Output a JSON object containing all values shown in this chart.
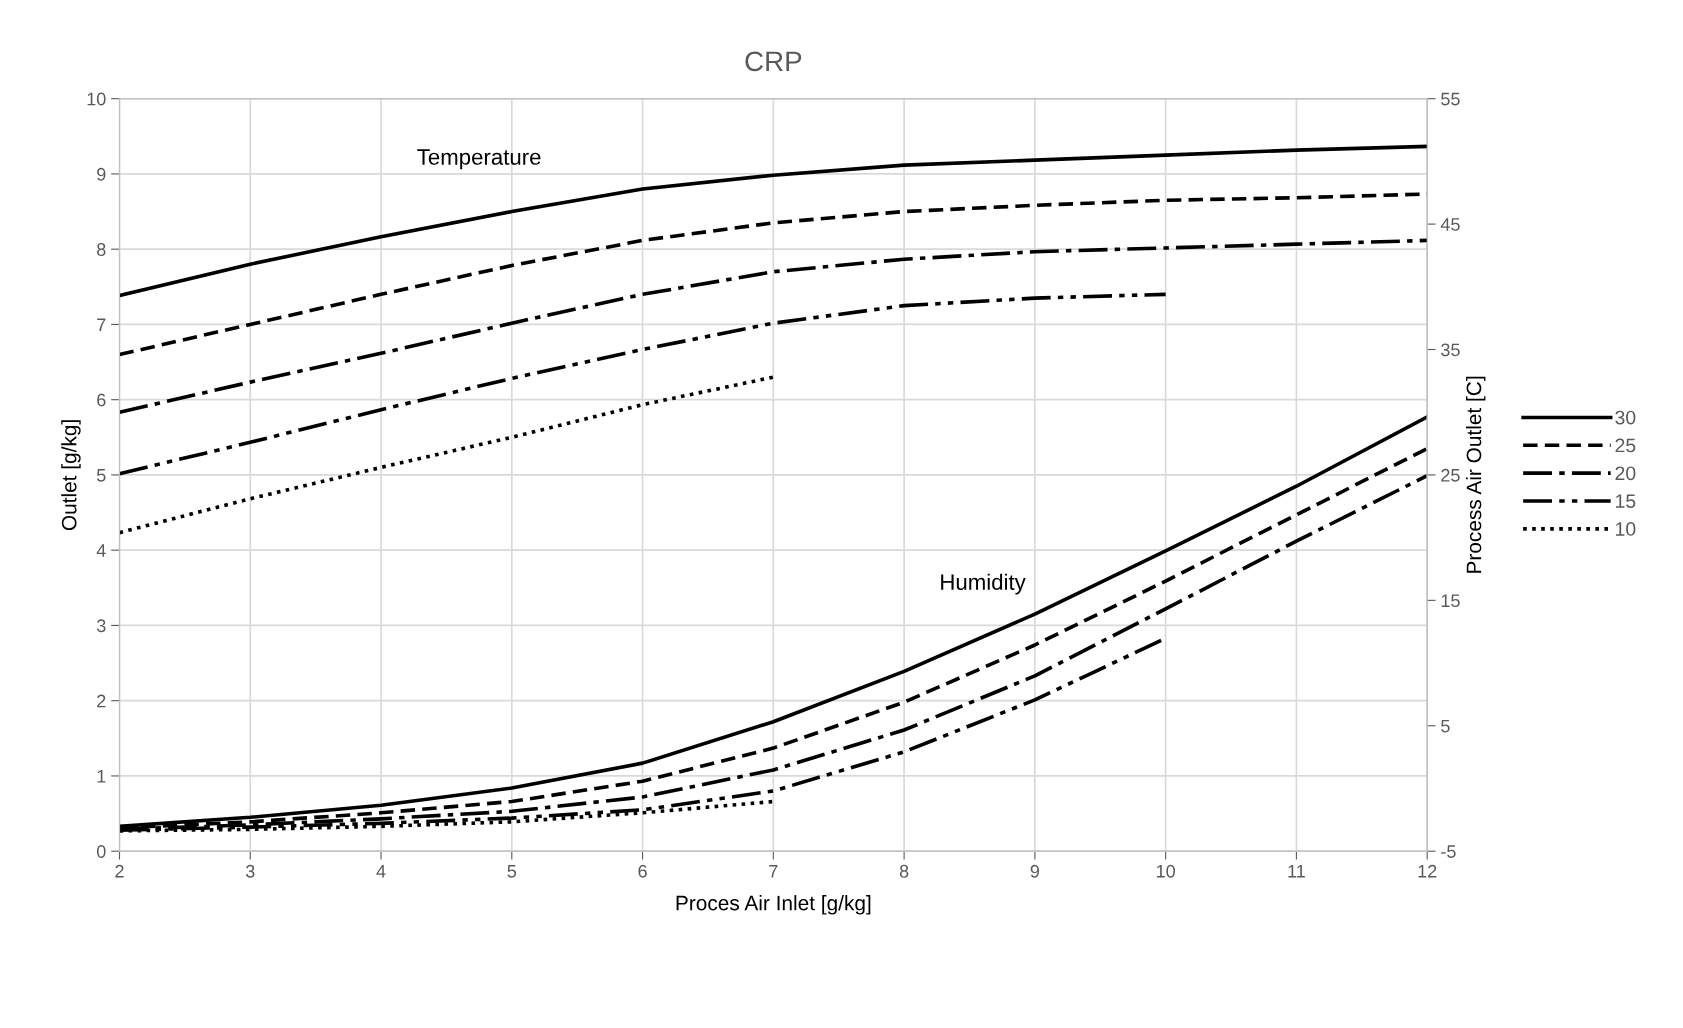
{
  "chart_data": {
    "type": "line",
    "title": "CRP",
    "xlabel": "Proces Air Inlet [g/kg]",
    "ylabel": "Outlet [g/kg]",
    "y2label": "Process Air Outlet [C]",
    "xlim": [
      2,
      12
    ],
    "xticks": [
      2,
      3,
      4,
      5,
      6,
      7,
      8,
      9,
      10,
      11,
      12
    ],
    "ylim": [
      0,
      10
    ],
    "yticks": [
      0,
      1,
      2,
      3,
      4,
      5,
      6,
      7,
      8,
      9,
      10
    ],
    "y2lim": [
      -5,
      55
    ],
    "y2ticks": [
      -5,
      5,
      15,
      25,
      35,
      45,
      55
    ],
    "grid": true,
    "legend": "right",
    "marker": "none",
    "annotations": [
      "Temperature",
      "Humidity"
    ],
    "series": [
      {
        "name": "30",
        "color": "#000000",
        "line_style": "solid",
        "x": [
          2,
          3,
          4,
          5,
          6,
          7,
          8,
          9,
          10,
          11,
          12
        ],
        "values": [
          0.33,
          0.45,
          0.61,
          0.84,
          1.17,
          1.72,
          2.39,
          3.15,
          3.99,
          4.85,
          5.77
        ]
      },
      {
        "name": "25",
        "color": "#000000",
        "line_style": "dashed",
        "x": [
          2,
          3,
          4,
          5,
          6,
          7,
          8,
          9,
          10,
          11,
          12
        ],
        "values": [
          0.31,
          0.39,
          0.51,
          0.66,
          0.93,
          1.37,
          1.98,
          2.74,
          3.59,
          4.47,
          5.35
        ]
      },
      {
        "name": "20",
        "color": "#000000",
        "line_style": "dashdot",
        "x": [
          2,
          3,
          4,
          5,
          6,
          7,
          8,
          9,
          10,
          11,
          12
        ],
        "values": [
          0.29,
          0.35,
          0.43,
          0.53,
          0.72,
          1.08,
          1.61,
          2.33,
          3.22,
          4.12,
          4.99
        ]
      },
      {
        "name": "15",
        "color": "#000000",
        "line_style": "dashdotdot",
        "x": [
          2,
          3,
          4,
          5,
          6,
          7,
          8,
          9,
          10
        ],
        "values": [
          0.28,
          0.32,
          0.37,
          0.44,
          0.55,
          0.8,
          1.32,
          2.01,
          2.83
        ]
      },
      {
        "name": "10",
        "color": "#000000",
        "line_style": "dotted",
        "x": [
          2,
          3,
          4,
          5,
          6,
          7
        ],
        "values": [
          0.27,
          0.29,
          0.33,
          0.39,
          0.51,
          0.66
        ]
      },
      {
        "color": "#000000",
        "line_style": "solid",
        "axis": "y2",
        "x": [
          2,
          3,
          4,
          5,
          6,
          7,
          8,
          9,
          10,
          11,
          12
        ],
        "values": [
          39.3,
          41.8,
          44.0,
          46.0,
          47.8,
          48.9,
          49.7,
          50.1,
          50.5,
          50.9,
          51.2
        ]
      },
      {
        "color": "#000000",
        "line_style": "dashed",
        "axis": "y2",
        "x": [
          2,
          3,
          4,
          5,
          6,
          7,
          8,
          9,
          10,
          11,
          12
        ],
        "values": [
          34.6,
          37.0,
          39.4,
          41.7,
          43.7,
          45.1,
          46.0,
          46.5,
          46.9,
          47.1,
          47.4
        ]
      },
      {
        "color": "#000000",
        "line_style": "dashdot",
        "axis": "y2",
        "x": [
          2,
          3,
          4,
          5,
          6,
          7,
          8,
          9,
          10,
          11,
          12
        ],
        "values": [
          30.0,
          32.4,
          34.7,
          37.1,
          39.4,
          41.2,
          42.2,
          42.8,
          43.1,
          43.4,
          43.7
        ]
      },
      {
        "color": "#000000",
        "line_style": "dashdotdot",
        "axis": "y2",
        "x": [
          2,
          3,
          4,
          5,
          6,
          7,
          8,
          9,
          10
        ],
        "values": [
          25.1,
          27.6,
          30.2,
          32.7,
          35.0,
          37.1,
          38.5,
          39.1,
          39.4
        ]
      },
      {
        "color": "#000000",
        "line_style": "dotted",
        "axis": "y2",
        "x": [
          2,
          3,
          4,
          5,
          6,
          7
        ],
        "values": [
          20.4,
          23.1,
          25.6,
          28.0,
          30.6,
          32.8
        ]
      }
    ]
  }
}
